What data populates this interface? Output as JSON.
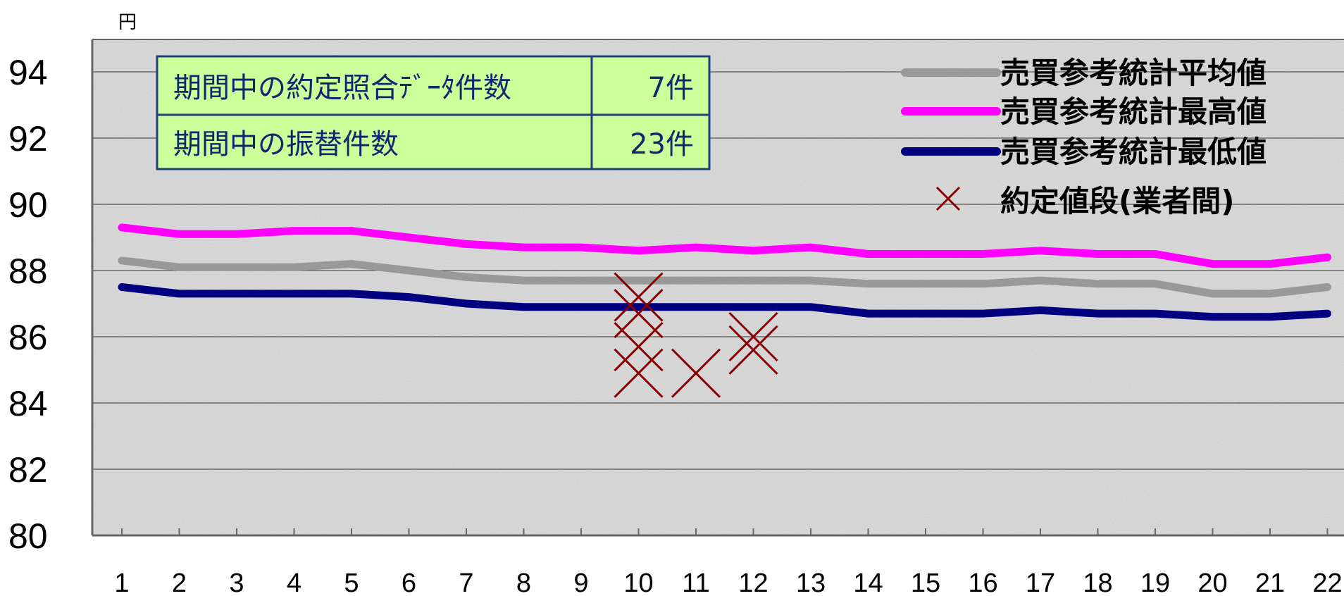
{
  "chart_data": {
    "type": "line",
    "unit_label": "円",
    "x": [
      1,
      2,
      3,
      4,
      5,
      6,
      7,
      8,
      9,
      10,
      11,
      12,
      13,
      14,
      15,
      16,
      17,
      18,
      19,
      20,
      21,
      22
    ],
    "ylim": [
      80,
      95
    ],
    "yticks": [
      80,
      82,
      84,
      86,
      88,
      90,
      92,
      94
    ],
    "grid": true,
    "series": [
      {
        "name": "売買参考統計平均値",
        "color": "#999999",
        "values": [
          88.3,
          88.1,
          88.1,
          88.1,
          88.2,
          88.0,
          87.8,
          87.7,
          87.7,
          87.7,
          87.7,
          87.7,
          87.7,
          87.6,
          87.6,
          87.6,
          87.7,
          87.6,
          87.6,
          87.3,
          87.3,
          87.5
        ]
      },
      {
        "name": "売買参考統計最高値",
        "color": "#ff00ff",
        "values": [
          89.3,
          89.1,
          89.1,
          89.2,
          89.2,
          89.0,
          88.8,
          88.7,
          88.7,
          88.6,
          88.7,
          88.6,
          88.7,
          88.5,
          88.5,
          88.5,
          88.6,
          88.5,
          88.5,
          88.2,
          88.2,
          88.4
        ]
      },
      {
        "name": "売買参考統計最低値",
        "color": "#000080",
        "values": [
          87.5,
          87.3,
          87.3,
          87.3,
          87.3,
          87.2,
          87.0,
          86.9,
          86.9,
          86.9,
          86.9,
          86.9,
          86.9,
          86.7,
          86.7,
          86.7,
          86.8,
          86.7,
          86.7,
          86.6,
          86.6,
          86.7
        ]
      }
    ],
    "scatter": {
      "name": "約定値段(業者間)",
      "color": "#8b0000",
      "points": [
        [
          10,
          87.2
        ],
        [
          10,
          86.7
        ],
        [
          10,
          85.7
        ],
        [
          10,
          84.9
        ],
        [
          11,
          84.9
        ],
        [
          12,
          86.0
        ],
        [
          12,
          85.6
        ]
      ]
    },
    "legend_position": "top-right"
  },
  "info_box": {
    "rows": [
      {
        "label": "期間中の約定照合ﾃﾞｰﾀ件数",
        "value": "7件"
      },
      {
        "label": "期間中の振替件数",
        "value": "23件"
      }
    ]
  },
  "colors": {
    "plot_background": "#dedede",
    "info_box_fill": "#ccff99",
    "info_box_border": "#1f3f7a"
  }
}
